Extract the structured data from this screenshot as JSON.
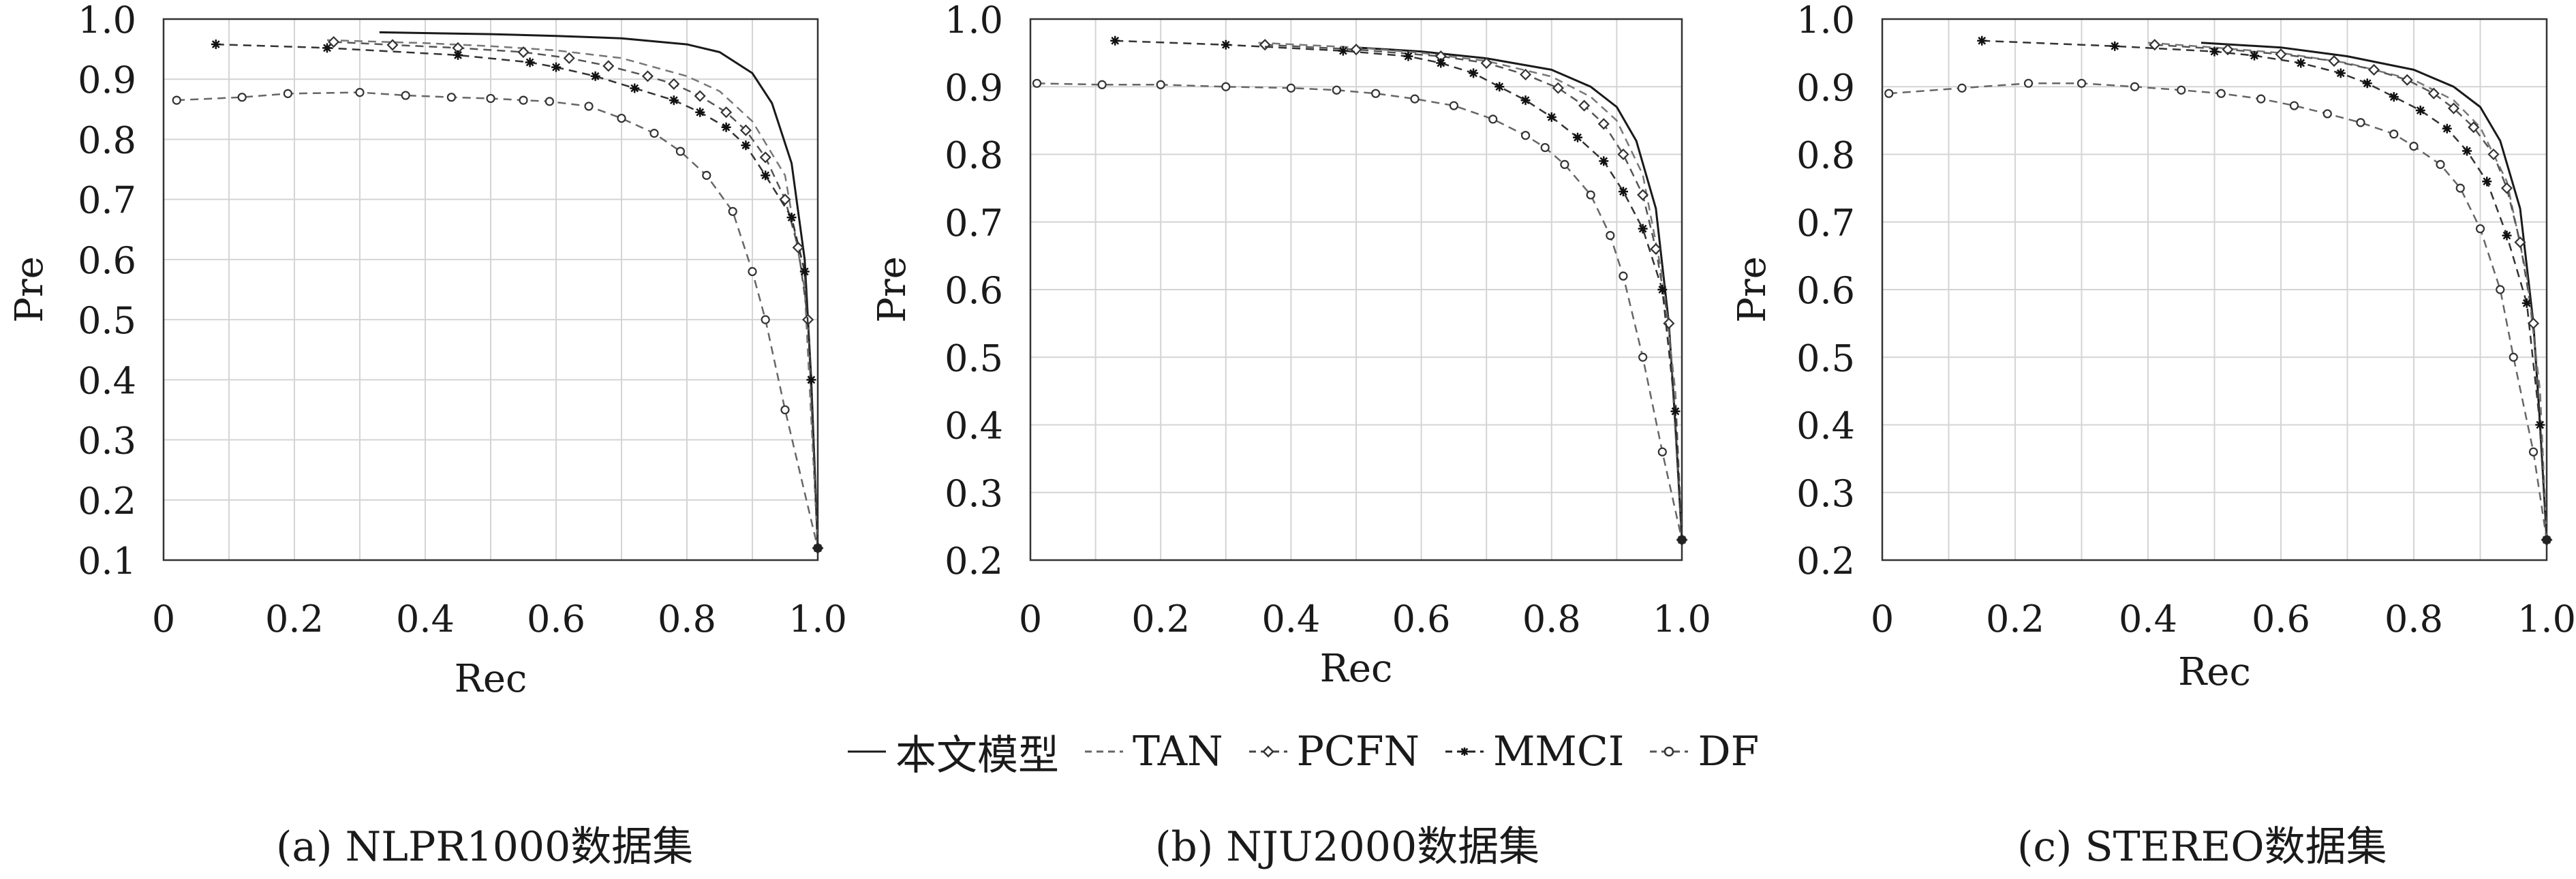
{
  "legend": {
    "items": [
      {
        "label": "本文模型",
        "style": "solid"
      },
      {
        "label": "TAN",
        "style": "dashed"
      },
      {
        "label": "PCFN",
        "style": "diamond"
      },
      {
        "label": "MMCI",
        "style": "star"
      },
      {
        "label": "DF",
        "style": "circle"
      }
    ]
  },
  "chart_data": [
    {
      "type": "line",
      "caption": "(a) NLPR1000数据集",
      "xlabel": "Rec",
      "ylabel": "Pre",
      "xlim": [
        0,
        1.0
      ],
      "ylim": [
        0.1,
        1.0
      ],
      "xticks": [
        "0",
        "0.2",
        "0.4",
        "0.6",
        "0.8",
        "1.0"
      ],
      "yticks": [
        "0.1",
        "0.2",
        "0.3",
        "0.4",
        "0.5",
        "0.6",
        "0.7",
        "0.8",
        "0.9",
        "1.0"
      ],
      "grid": true,
      "series": [
        {
          "name": "本文模型",
          "points": [
            [
              0.33,
              0.978
            ],
            [
              0.5,
              0.975
            ],
            [
              0.6,
              0.972
            ],
            [
              0.7,
              0.968
            ],
            [
              0.8,
              0.958
            ],
            [
              0.85,
              0.945
            ],
            [
              0.9,
              0.91
            ],
            [
              0.93,
              0.86
            ],
            [
              0.96,
              0.76
            ],
            [
              0.98,
              0.6
            ],
            [
              0.99,
              0.4
            ],
            [
              1.0,
              0.12
            ]
          ]
        },
        {
          "name": "TAN",
          "points": [
            [
              0.25,
              0.965
            ],
            [
              0.4,
              0.96
            ],
            [
              0.5,
              0.955
            ],
            [
              0.6,
              0.948
            ],
            [
              0.7,
              0.935
            ],
            [
              0.8,
              0.905
            ],
            [
              0.85,
              0.88
            ],
            [
              0.9,
              0.83
            ],
            [
              0.95,
              0.74
            ],
            [
              0.98,
              0.55
            ],
            [
              1.0,
              0.12
            ]
          ]
        },
        {
          "name": "PCFN",
          "points": [
            [
              0.26,
              0.962
            ],
            [
              0.35,
              0.957
            ],
            [
              0.45,
              0.952
            ],
            [
              0.55,
              0.945
            ],
            [
              0.62,
              0.935
            ],
            [
              0.68,
              0.922
            ],
            [
              0.74,
              0.905
            ],
            [
              0.78,
              0.892
            ],
            [
              0.82,
              0.872
            ],
            [
              0.86,
              0.845
            ],
            [
              0.89,
              0.815
            ],
            [
              0.92,
              0.77
            ],
            [
              0.95,
              0.7
            ],
            [
              0.97,
              0.62
            ],
            [
              0.985,
              0.5
            ],
            [
              1.0,
              0.12
            ]
          ]
        },
        {
          "name": "MMCI",
          "points": [
            [
              0.08,
              0.958
            ],
            [
              0.25,
              0.952
            ],
            [
              0.45,
              0.94
            ],
            [
              0.56,
              0.928
            ],
            [
              0.6,
              0.92
            ],
            [
              0.66,
              0.905
            ],
            [
              0.72,
              0.885
            ],
            [
              0.78,
              0.865
            ],
            [
              0.82,
              0.845
            ],
            [
              0.86,
              0.82
            ],
            [
              0.89,
              0.79
            ],
            [
              0.92,
              0.74
            ],
            [
              0.96,
              0.67
            ],
            [
              0.98,
              0.58
            ],
            [
              0.99,
              0.4
            ],
            [
              1.0,
              0.12
            ]
          ]
        },
        {
          "name": "DF",
          "points": [
            [
              0.02,
              0.865
            ],
            [
              0.12,
              0.87
            ],
            [
              0.19,
              0.876
            ],
            [
              0.3,
              0.878
            ],
            [
              0.37,
              0.873
            ],
            [
              0.44,
              0.87
            ],
            [
              0.5,
              0.868
            ],
            [
              0.55,
              0.865
            ],
            [
              0.59,
              0.863
            ],
            [
              0.65,
              0.855
            ],
            [
              0.7,
              0.835
            ],
            [
              0.75,
              0.81
            ],
            [
              0.79,
              0.78
            ],
            [
              0.83,
              0.74
            ],
            [
              0.87,
              0.68
            ],
            [
              0.9,
              0.58
            ],
            [
              0.92,
              0.5
            ],
            [
              0.95,
              0.35
            ],
            [
              1.0,
              0.12
            ]
          ]
        }
      ]
    },
    {
      "type": "line",
      "caption": "(b) NJU2000数据集",
      "xlabel": "Rec",
      "ylabel": "Pre",
      "xlim": [
        0,
        1.0
      ],
      "ylim": [
        0.2,
        1.0
      ],
      "xticks": [
        "0",
        "0.2",
        "0.4",
        "0.6",
        "0.8",
        "1.0"
      ],
      "yticks": [
        "0.2",
        "0.3",
        "0.4",
        "0.5",
        "0.6",
        "0.7",
        "0.8",
        "0.9",
        "1.0"
      ],
      "grid": true,
      "series": [
        {
          "name": "本文模型",
          "points": [
            [
              0.5,
              0.958
            ],
            [
              0.6,
              0.952
            ],
            [
              0.7,
              0.942
            ],
            [
              0.8,
              0.925
            ],
            [
              0.86,
              0.9
            ],
            [
              0.9,
              0.87
            ],
            [
              0.93,
              0.82
            ],
            [
              0.96,
              0.72
            ],
            [
              0.98,
              0.55
            ],
            [
              0.99,
              0.4
            ],
            [
              1.0,
              0.23
            ]
          ]
        },
        {
          "name": "TAN",
          "points": [
            [
              0.35,
              0.965
            ],
            [
              0.5,
              0.958
            ],
            [
              0.6,
              0.95
            ],
            [
              0.7,
              0.938
            ],
            [
              0.8,
              0.915
            ],
            [
              0.86,
              0.885
            ],
            [
              0.9,
              0.85
            ],
            [
              0.94,
              0.77
            ],
            [
              0.97,
              0.62
            ],
            [
              0.99,
              0.45
            ],
            [
              1.0,
              0.23
            ]
          ]
        },
        {
          "name": "PCFN",
          "points": [
            [
              0.36,
              0.962
            ],
            [
              0.5,
              0.955
            ],
            [
              0.63,
              0.945
            ],
            [
              0.7,
              0.935
            ],
            [
              0.76,
              0.918
            ],
            [
              0.81,
              0.898
            ],
            [
              0.85,
              0.872
            ],
            [
              0.88,
              0.845
            ],
            [
              0.91,
              0.8
            ],
            [
              0.94,
              0.74
            ],
            [
              0.96,
              0.66
            ],
            [
              0.98,
              0.55
            ],
            [
              1.0,
              0.23
            ]
          ]
        },
        {
          "name": "MMCI",
          "points": [
            [
              0.13,
              0.968
            ],
            [
              0.3,
              0.962
            ],
            [
              0.48,
              0.953
            ],
            [
              0.58,
              0.945
            ],
            [
              0.63,
              0.935
            ],
            [
              0.68,
              0.92
            ],
            [
              0.72,
              0.9
            ],
            [
              0.76,
              0.88
            ],
            [
              0.8,
              0.855
            ],
            [
              0.84,
              0.825
            ],
            [
              0.88,
              0.79
            ],
            [
              0.91,
              0.745
            ],
            [
              0.94,
              0.69
            ],
            [
              0.97,
              0.6
            ],
            [
              0.99,
              0.42
            ],
            [
              1.0,
              0.23
            ]
          ]
        },
        {
          "name": "DF",
          "points": [
            [
              0.01,
              0.905
            ],
            [
              0.11,
              0.903
            ],
            [
              0.2,
              0.903
            ],
            [
              0.3,
              0.9
            ],
            [
              0.4,
              0.898
            ],
            [
              0.47,
              0.895
            ],
            [
              0.53,
              0.89
            ],
            [
              0.59,
              0.882
            ],
            [
              0.65,
              0.872
            ],
            [
              0.71,
              0.852
            ],
            [
              0.76,
              0.828
            ],
            [
              0.79,
              0.81
            ],
            [
              0.82,
              0.785
            ],
            [
              0.86,
              0.74
            ],
            [
              0.89,
              0.68
            ],
            [
              0.91,
              0.62
            ],
            [
              0.94,
              0.5
            ],
            [
              0.97,
              0.36
            ],
            [
              1.0,
              0.23
            ]
          ]
        }
      ]
    },
    {
      "type": "line",
      "caption": "(c) STEREO数据集",
      "xlabel": "Rec",
      "ylabel": "Pre",
      "xlim": [
        0,
        1.0
      ],
      "ylim": [
        0.2,
        1.0
      ],
      "xticks": [
        "0",
        "0.2",
        "0.4",
        "0.6",
        "0.8",
        "1.0"
      ],
      "yticks": [
        "0.2",
        "0.3",
        "0.4",
        "0.5",
        "0.6",
        "0.7",
        "0.8",
        "0.9",
        "1.0"
      ],
      "grid": true,
      "series": [
        {
          "name": "本文模型",
          "points": [
            [
              0.48,
              0.965
            ],
            [
              0.6,
              0.958
            ],
            [
              0.7,
              0.945
            ],
            [
              0.8,
              0.925
            ],
            [
              0.86,
              0.9
            ],
            [
              0.9,
              0.87
            ],
            [
              0.93,
              0.82
            ],
            [
              0.96,
              0.72
            ],
            [
              0.98,
              0.55
            ],
            [
              0.99,
              0.4
            ],
            [
              1.0,
              0.23
            ]
          ]
        },
        {
          "name": "TAN",
          "points": [
            [
              0.4,
              0.965
            ],
            [
              0.5,
              0.958
            ],
            [
              0.6,
              0.95
            ],
            [
              0.7,
              0.935
            ],
            [
              0.8,
              0.91
            ],
            [
              0.86,
              0.88
            ],
            [
              0.9,
              0.84
            ],
            [
              0.94,
              0.76
            ],
            [
              0.97,
              0.62
            ],
            [
              0.99,
              0.45
            ],
            [
              1.0,
              0.23
            ]
          ]
        },
        {
          "name": "PCFN",
          "points": [
            [
              0.41,
              0.962
            ],
            [
              0.52,
              0.955
            ],
            [
              0.6,
              0.948
            ],
            [
              0.68,
              0.938
            ],
            [
              0.74,
              0.925
            ],
            [
              0.79,
              0.91
            ],
            [
              0.83,
              0.89
            ],
            [
              0.86,
              0.868
            ],
            [
              0.89,
              0.84
            ],
            [
              0.92,
              0.8
            ],
            [
              0.94,
              0.75
            ],
            [
              0.96,
              0.67
            ],
            [
              0.98,
              0.55
            ],
            [
              1.0,
              0.23
            ]
          ]
        },
        {
          "name": "MMCI",
          "points": [
            [
              0.15,
              0.968
            ],
            [
              0.35,
              0.96
            ],
            [
              0.5,
              0.952
            ],
            [
              0.56,
              0.946
            ],
            [
              0.63,
              0.935
            ],
            [
              0.69,
              0.92
            ],
            [
              0.73,
              0.905
            ],
            [
              0.77,
              0.885
            ],
            [
              0.81,
              0.865
            ],
            [
              0.85,
              0.838
            ],
            [
              0.88,
              0.805
            ],
            [
              0.91,
              0.76
            ],
            [
              0.94,
              0.68
            ],
            [
              0.97,
              0.58
            ],
            [
              0.99,
              0.4
            ],
            [
              1.0,
              0.23
            ]
          ]
        },
        {
          "name": "DF",
          "points": [
            [
              0.01,
              0.89
            ],
            [
              0.12,
              0.898
            ],
            [
              0.22,
              0.905
            ],
            [
              0.3,
              0.905
            ],
            [
              0.38,
              0.9
            ],
            [
              0.45,
              0.895
            ],
            [
              0.51,
              0.89
            ],
            [
              0.57,
              0.882
            ],
            [
              0.62,
              0.872
            ],
            [
              0.67,
              0.86
            ],
            [
              0.72,
              0.847
            ],
            [
              0.77,
              0.83
            ],
            [
              0.8,
              0.812
            ],
            [
              0.84,
              0.785
            ],
            [
              0.87,
              0.75
            ],
            [
              0.9,
              0.69
            ],
            [
              0.93,
              0.6
            ],
            [
              0.95,
              0.5
            ],
            [
              0.98,
              0.36
            ],
            [
              1.0,
              0.23
            ]
          ]
        }
      ]
    }
  ]
}
